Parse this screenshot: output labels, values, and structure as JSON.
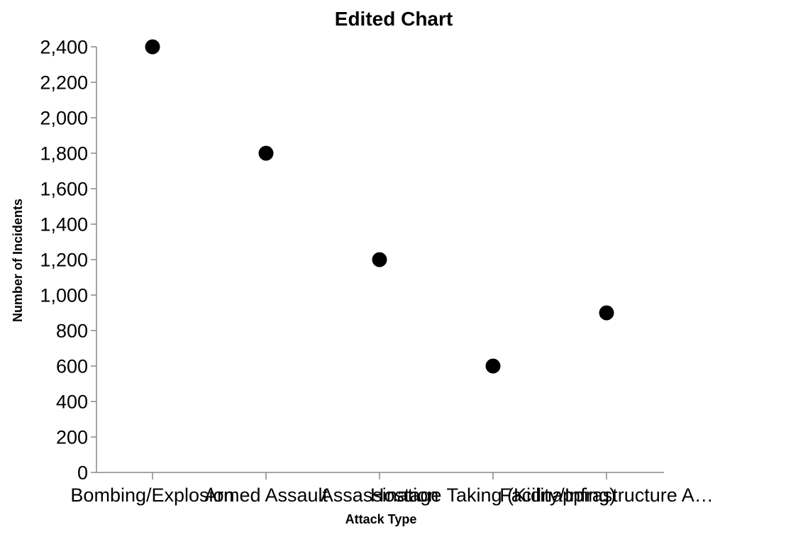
{
  "chart_data": {
    "type": "scatter",
    "title": "Edited Chart",
    "xlabel": "Attack Type",
    "ylabel": "Number of Incidents",
    "categories": [
      "Bombing/Explosion",
      "Armed Assault",
      "Assassination",
      "Hostage Taking (Kidnapping)",
      "Facility/Infrastructure Attack"
    ],
    "category_labels": [
      "Bombing/Explosion",
      "Armed Assault",
      "Assassination",
      "Hostage Taking (Kidnapping)",
      "Facility/Infrastructure A…"
    ],
    "values": [
      2400,
      1800,
      1200,
      600,
      900
    ],
    "ylim": [
      0,
      2400
    ],
    "yticks": [
      0,
      200,
      400,
      600,
      800,
      1000,
      1200,
      1400,
      1600,
      1800,
      2000,
      2200,
      2400
    ],
    "ytick_labels": [
      "0",
      "200",
      "400",
      "600",
      "800",
      "1,000",
      "1,200",
      "1,400",
      "1,600",
      "1,800",
      "2,000",
      "2,200",
      "2,400"
    ],
    "grid": false,
    "point_color": "#000000",
    "axis_color": "#888888"
  }
}
